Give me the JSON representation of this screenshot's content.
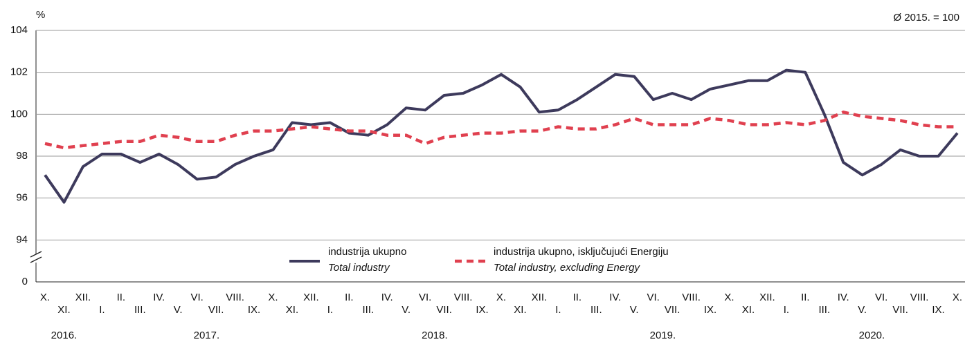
{
  "chart_data": {
    "type": "line",
    "unit_label": "%",
    "note": "Ø 2015. = 100",
    "categories": [
      "X.",
      "XI.",
      "XII.",
      "I.",
      "II.",
      "III.",
      "IV.",
      "V.",
      "VI.",
      "VII.",
      "VIII.",
      "IX.",
      "X.",
      "XI.",
      "XII.",
      "I.",
      "II.",
      "III.",
      "IV.",
      "V.",
      "VI.",
      "VII.",
      "VIII.",
      "IX.",
      "X.",
      "XI.",
      "XII.",
      "I.",
      "II.",
      "III.",
      "IV.",
      "V.",
      "VI.",
      "VII.",
      "VIII.",
      "IX.",
      "X.",
      "XI.",
      "XII.",
      "I.",
      "II.",
      "III.",
      "IV.",
      "V.",
      "VI.",
      "VII.",
      "VIII.",
      "IX.",
      "X."
    ],
    "years": [
      "2016.",
      "2017.",
      "2018.",
      "2019.",
      "2020."
    ],
    "series": [
      {
        "name": "industrija ukupno",
        "name_en": "Total industry",
        "color": "#3d3a5c",
        "dash": false,
        "values": [
          97.1,
          95.8,
          97.5,
          98.1,
          98.1,
          97.7,
          98.1,
          97.6,
          96.9,
          97.0,
          97.6,
          98.0,
          98.3,
          99.6,
          99.5,
          99.6,
          99.1,
          99.0,
          99.5,
          100.3,
          100.2,
          100.9,
          101.0,
          101.4,
          101.9,
          101.3,
          100.1,
          100.2,
          100.7,
          101.3,
          101.9,
          101.8,
          100.7,
          101.0,
          100.7,
          101.2,
          101.4,
          101.6,
          101.6,
          102.1,
          102.0,
          100.0,
          97.7,
          97.1,
          97.6,
          98.3,
          98.0,
          98.0,
          99.1
        ]
      },
      {
        "name": "industrija ukupno, isključujući Energiju",
        "name_en": "Total industry, excluding Energy",
        "color": "#e0404f",
        "dash": true,
        "values": [
          98.6,
          98.4,
          98.5,
          98.6,
          98.7,
          98.7,
          99.0,
          98.9,
          98.7,
          98.7,
          99.0,
          99.2,
          99.2,
          99.3,
          99.4,
          99.3,
          99.2,
          99.2,
          99.0,
          99.0,
          98.6,
          98.9,
          99.0,
          99.1,
          99.1,
          99.2,
          99.2,
          99.4,
          99.3,
          99.3,
          99.5,
          99.8,
          99.5,
          99.5,
          99.5,
          99.8,
          99.7,
          99.5,
          99.5,
          99.6,
          99.5,
          99.7,
          100.1,
          99.9,
          99.8,
          99.7,
          99.5,
          99.4,
          99.4
        ]
      }
    ],
    "ylim": [
      0,
      104
    ],
    "y_break": [
      0,
      92
    ],
    "yticks": [
      0,
      94,
      96,
      98,
      100,
      102,
      104
    ],
    "grid": true
  }
}
